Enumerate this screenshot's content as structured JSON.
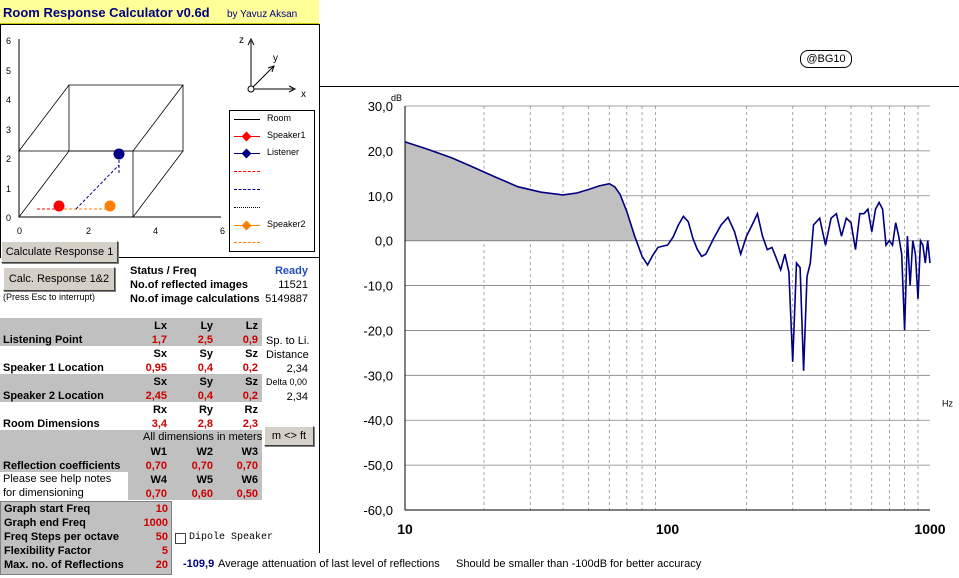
{
  "header": {
    "title": "Room Response Calculator  v0.6d",
    "author": "by Yavuz Aksan"
  },
  "view3d": {
    "yaxis_ticks": [
      "6",
      "5",
      "4",
      "3",
      "2",
      "1",
      "0"
    ],
    "xaxis_ticks": [
      "0",
      "2",
      "4",
      "6"
    ],
    "axis_labels": {
      "z": "z",
      "y": "y",
      "x": "x"
    },
    "legend": [
      {
        "label": "Room",
        "color": "#000000",
        "style": "solid",
        "marker": "none"
      },
      {
        "label": "Speaker1",
        "color": "#ff0000",
        "style": "solid",
        "marker": "diamond"
      },
      {
        "label": "Listener",
        "color": "#000080",
        "style": "solid",
        "marker": "diamond"
      },
      {
        "label": "",
        "color": "#ff0000",
        "style": "dashed",
        "marker": "none"
      },
      {
        "label": "",
        "color": "#000080",
        "style": "dashed",
        "marker": "none"
      },
      {
        "label": "",
        "color": "#000000",
        "style": "dotted",
        "marker": "none"
      },
      {
        "label": "Speaker2",
        "color": "#ff8000",
        "style": "solid",
        "marker": "diamond"
      },
      {
        "label": "",
        "color": "#ff8000",
        "style": "dashed",
        "marker": "none"
      }
    ],
    "colors": {
      "speaker1": "#ff0000",
      "speaker2": "#ff8000",
      "listener": "#000080"
    }
  },
  "controls": {
    "calc1_label": "Calculate Response 1",
    "calc12_label": "Calc. Response 1&2",
    "esc_note": "(Press Esc to interrupt)",
    "units_button": "m <> ft"
  },
  "status": {
    "status_label": "Status / Freq",
    "status_value": "Ready",
    "images_label": "No.of reflected images",
    "images_value": "11521",
    "calcs_label": "No.of image calculations",
    "calcs_value": "5149887"
  },
  "listening": {
    "headers": [
      "Lx",
      "Ly",
      "Lz"
    ],
    "label": "Listening Point",
    "values": [
      "1,7",
      "2,5",
      "0,9"
    ],
    "side_label": "Sp. to Li."
  },
  "speaker1": {
    "headers": [
      "Sx",
      "Sy",
      "Sz"
    ],
    "label": "Speaker 1 Location",
    "values": [
      "0,95",
      "0,4",
      "0,2"
    ],
    "side_label": "Distance",
    "side_value": "2,34"
  },
  "speaker2": {
    "headers": [
      "Sx",
      "Sy",
      "Sz"
    ],
    "label": "Speaker 2 Location",
    "values": [
      "2,45",
      "0,4",
      "0,2"
    ],
    "side_label": "Delta 0,00",
    "side_value": "2,34"
  },
  "room": {
    "headers": [
      "Rx",
      "Ry",
      "Rz"
    ],
    "label": "Room Dimensions",
    "values": [
      "3,4",
      "2,8",
      "2,3"
    ],
    "note": "All dimensions in meters"
  },
  "reflection": {
    "headers1": [
      "W1",
      "W2",
      "W3"
    ],
    "label": "Reflection coefficients",
    "values1": [
      "0,70",
      "0,70",
      "0,70"
    ],
    "help1": "Please see help notes",
    "help2": "for dimensioning",
    "headers2": [
      "W4",
      "W5",
      "W6"
    ],
    "values2": [
      "0,70",
      "0,60",
      "0,50"
    ]
  },
  "params": [
    {
      "label": "Graph start Freq",
      "value": "10"
    },
    {
      "label": "Graph end Freq",
      "value": "1000"
    },
    {
      "label": "Freq Steps per octave",
      "value": "50"
    },
    {
      "label": "Flexibility Factor",
      "value": "5"
    },
    {
      "label": "Max. no. of Reflections",
      "value": "20"
    }
  ],
  "dipole": {
    "label": "Dipole  Speaker"
  },
  "footer": {
    "attenuation": "-109,9",
    "attenuation_label": "Average attenuation of last level of reflections",
    "accuracy_note": "Should be smaller than -100dB for better accuracy"
  },
  "badge": "@BG10",
  "chart_data": {
    "type": "line",
    "ylabel": "dB",
    "xlabel": "Hz",
    "xscale": "log",
    "xlim": [
      10,
      1000
    ],
    "ylim": [
      -60,
      30
    ],
    "y_ticks": [
      "30,0",
      "20,0",
      "10,0",
      "0,0",
      "-10,0",
      "-20,0",
      "-30,0",
      "-40,0",
      "-50,0",
      "-60,0"
    ],
    "x_ticks": [
      "10",
      "100",
      "1000"
    ],
    "grid": true,
    "line_color": "#000080",
    "fill_color": "#c0c0c0",
    "series": [
      {
        "x": [
          10,
          12,
          15,
          18,
          22,
          27,
          33,
          40,
          45,
          50,
          55,
          60,
          63,
          66,
          70,
          75,
          80,
          84,
          88,
          92,
          96,
          100,
          105,
          110,
          115,
          120,
          125,
          130,
          135,
          140,
          150,
          160,
          170,
          180,
          190,
          200,
          210,
          220,
          230,
          240,
          250,
          260,
          270,
          280,
          290,
          300,
          310,
          320,
          330,
          340,
          350,
          360,
          380,
          400,
          420,
          440,
          460,
          480,
          500,
          520,
          540,
          560,
          580,
          600,
          620,
          640,
          660,
          680,
          700,
          720,
          740,
          760,
          780,
          800,
          820,
          840,
          860,
          880,
          900,
          920,
          940,
          960,
          980,
          1000
        ],
        "y": [
          22,
          20.5,
          18.5,
          16.5,
          14.2,
          12,
          10.8,
          10.2,
          10.6,
          11.4,
          12.2,
          12.7,
          12,
          10.3,
          6.5,
          1,
          -3.5,
          -5.4,
          -3.2,
          -1.5,
          -1.2,
          -1,
          0.8,
          3.5,
          5.4,
          4.2,
          0.5,
          -2,
          -3.5,
          -3,
          0.5,
          3.5,
          5.2,
          2,
          -3,
          1,
          3.5,
          6,
          1,
          -2,
          -1.5,
          -4,
          -6.5,
          -3,
          -7,
          -27,
          -5,
          -6,
          -29,
          -8,
          -5,
          3.5,
          5,
          -1,
          5,
          6,
          1,
          5,
          4,
          -2,
          6,
          6,
          7,
          2,
          7,
          8.5,
          7,
          -1,
          0,
          -1,
          4,
          1,
          -3,
          -20,
          1,
          -10,
          0,
          -3,
          -13,
          0,
          -1,
          -5,
          0,
          -5
        ]
      }
    ]
  }
}
